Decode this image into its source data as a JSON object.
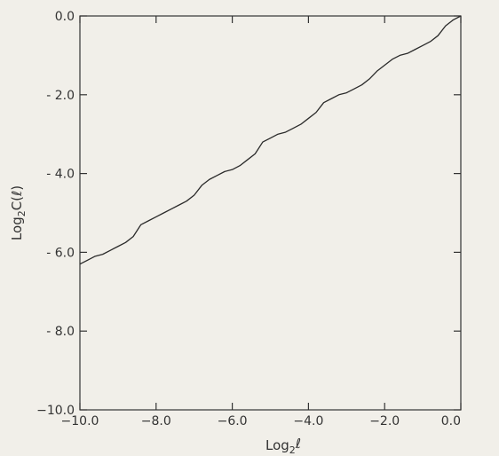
{
  "chart_data": {
    "type": "line",
    "title": "",
    "xlabel_base": "Log",
    "xlabel_sub": "2",
    "xlabel_var": "ℓ",
    "ylabel_base": "Log",
    "ylabel_sub": "2",
    "ylabel_var": "C(ℓ)",
    "xlim": [
      -10.0,
      0.0
    ],
    "ylim": [
      -10.0,
      0.0
    ],
    "x_ticks": [
      -10.0,
      -8.0,
      -6.0,
      -4.0,
      -2.0,
      0.0
    ],
    "x_tick_labels": [
      "−10.0",
      "−8.0",
      "−6.0",
      "−4.0",
      "−2.0",
      "0.0"
    ],
    "y_ticks": [
      0.0,
      -2.0,
      -4.0,
      -6.0,
      -8.0,
      -10.0
    ],
    "y_tick_labels": [
      "0.0",
      "- 2.0",
      "- 4.0",
      "- 6.0",
      "- 8.0",
      "−10.0"
    ],
    "grid": false,
    "series": [
      {
        "x": [
          -10.0,
          -9.8,
          -9.6,
          -9.4,
          -9.2,
          -9.0,
          -8.8,
          -8.6,
          -8.4,
          -8.2,
          -8.0,
          -7.8,
          -7.6,
          -7.4,
          -7.2,
          -7.0,
          -6.8,
          -6.6,
          -6.4,
          -6.2,
          -6.0,
          -5.8,
          -5.6,
          -5.4,
          -5.2,
          -5.0,
          -4.8,
          -4.6,
          -4.4,
          -4.2,
          -4.0,
          -3.8,
          -3.6,
          -3.4,
          -3.2,
          -3.0,
          -2.8,
          -2.6,
          -2.4,
          -2.2,
          -2.0,
          -1.8,
          -1.6,
          -1.4,
          -1.2,
          -1.0,
          -0.8,
          -0.6,
          -0.4,
          -0.2,
          0.0
        ],
        "y": [
          -6.3,
          -6.2,
          -6.1,
          -6.05,
          -5.95,
          -5.85,
          -5.75,
          -5.6,
          -5.3,
          -5.2,
          -5.1,
          -5.0,
          -4.9,
          -4.8,
          -4.7,
          -4.55,
          -4.3,
          -4.15,
          -4.05,
          -3.95,
          -3.9,
          -3.8,
          -3.65,
          -3.5,
          -3.2,
          -3.1,
          -3.0,
          -2.95,
          -2.85,
          -2.75,
          -2.6,
          -2.45,
          -2.2,
          -2.1,
          -2.0,
          -1.95,
          -1.85,
          -1.75,
          -1.6,
          -1.4,
          -1.25,
          -1.1,
          -1.0,
          -0.95,
          -0.85,
          -0.75,
          -0.65,
          -0.5,
          -0.25,
          -0.1,
          0.0
        ]
      }
    ]
  }
}
